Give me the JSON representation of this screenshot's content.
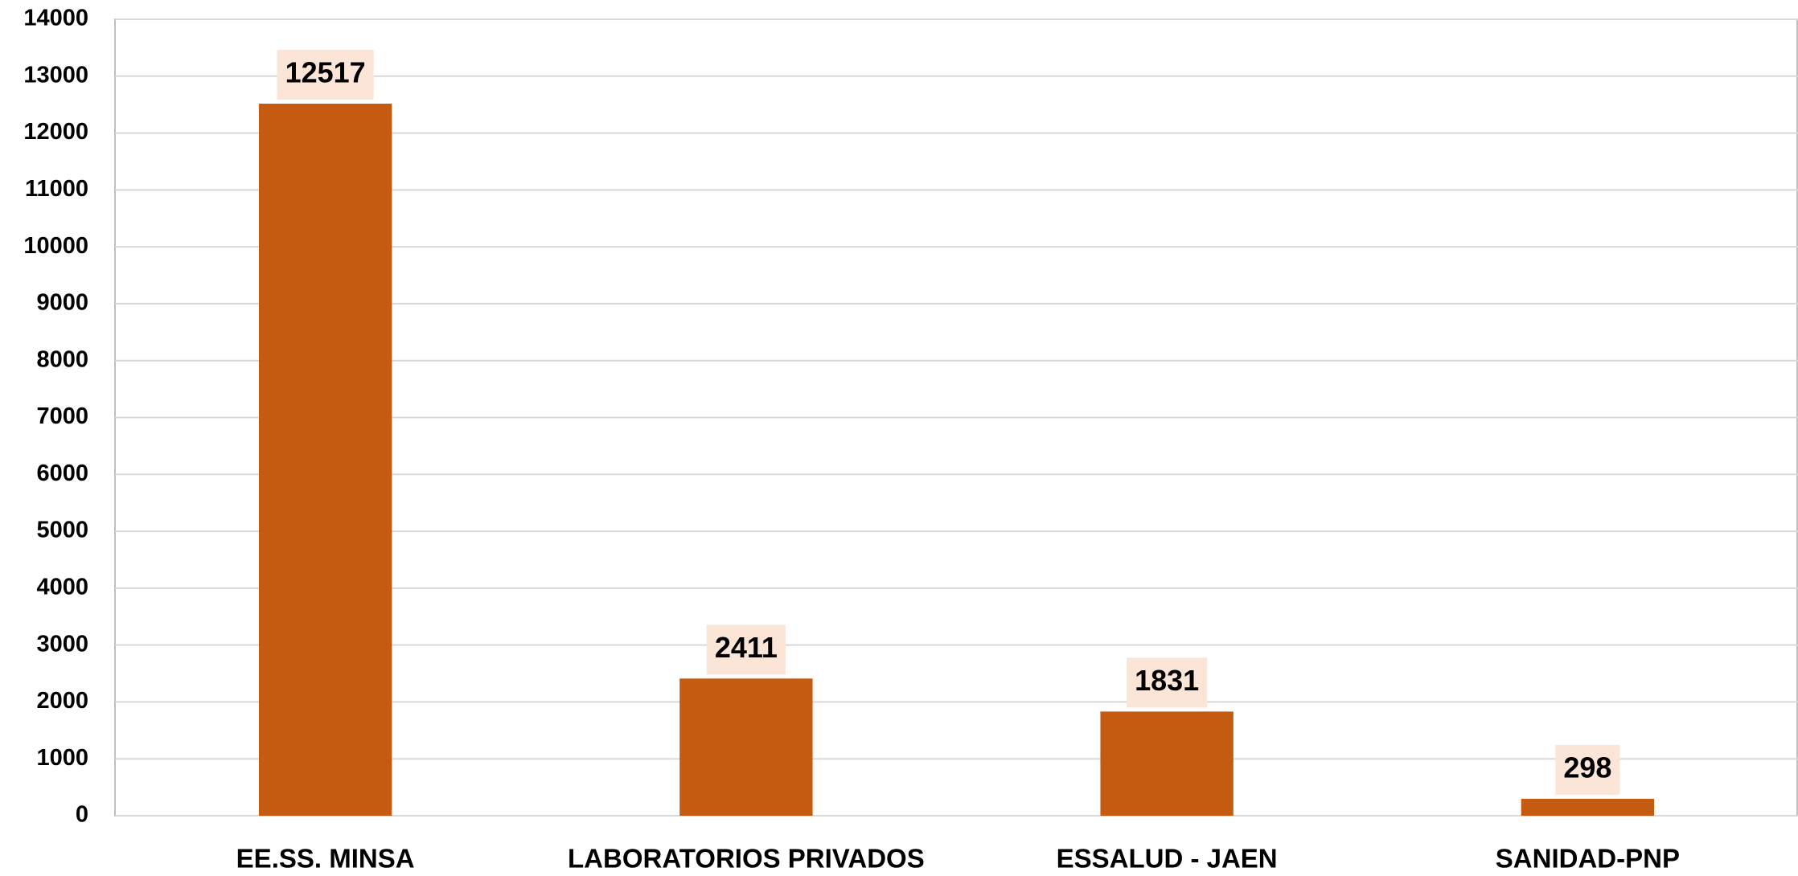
{
  "chart_data": {
    "type": "bar",
    "categories": [
      "EE.SS. MINSA",
      "LABORATORIOS PRIVADOS",
      "ESSALUD - JAEN",
      "SANIDAD-PNP"
    ],
    "values": [
      12517,
      2411,
      1831,
      298
    ],
    "color": "#c55a11",
    "ylim": [
      0,
      14000
    ],
    "yticks": [
      0,
      1000,
      2000,
      3000,
      4000,
      5000,
      6000,
      7000,
      8000,
      9000,
      10000,
      11000,
      12000,
      13000,
      14000
    ],
    "grid": true
  }
}
